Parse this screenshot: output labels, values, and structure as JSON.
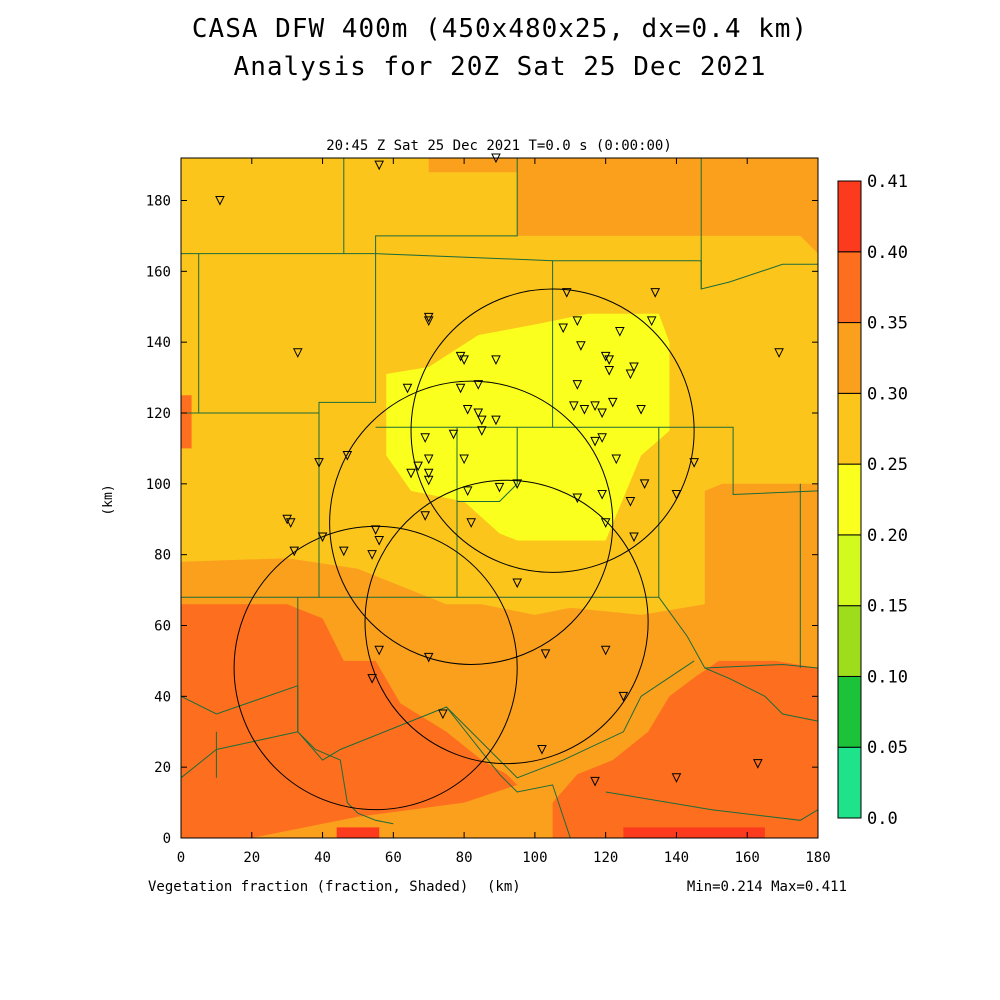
{
  "header": {
    "title_line1": "CASA DFW 400m (450x480x25, dx=0.4 km)",
    "title_line2": "Analysis for 20Z Sat 25 Dec 2021",
    "subtitle": "20:45 Z Sat 25 Dec 2021    T=0.0 s (0:00:00)"
  },
  "footer": {
    "variable_label": "Vegetation fraction (fraction, Shaded)",
    "x_unit_label": "(km)",
    "minmax": "Min=0.214 Max=0.411"
  },
  "colors": {
    "c0": "#1ee38a",
    "c1": "#1cc339",
    "c2": "#9edd1c",
    "c3": "#d2fa1e",
    "c4": "#faff1e",
    "c5": "#fcc51c",
    "c6": "#fba01c",
    "c7": "#fd6f1e",
    "c8": "#fc3a1e",
    "boundary": "#1c6b3a"
  },
  "chart_data": {
    "type": "heatmap",
    "title": "CASA DFW 400m (450x480x25, dx=0.4 km)",
    "subtitle": "Analysis for 20Z Sat 25 Dec 2021",
    "xlabel": "(km)",
    "ylabel": "(km)",
    "xlim": [
      0,
      180
    ],
    "ylim": [
      0,
      192
    ],
    "x_ticks": [
      0,
      20,
      40,
      60,
      80,
      100,
      120,
      140,
      160,
      180
    ],
    "y_ticks": [
      0,
      20,
      40,
      60,
      80,
      100,
      120,
      140,
      160,
      180
    ],
    "colorbar": {
      "levels": [
        0.0,
        0.05,
        0.1,
        0.15,
        0.2,
        0.25,
        0.3,
        0.35,
        0.4,
        0.41
      ],
      "labels": [
        "0.0",
        "0.05",
        "0.10",
        "0.15",
        "0.20",
        "0.25",
        "0.30",
        "0.35",
        "0.40",
        "0.41"
      ]
    },
    "min": 0.214,
    "max": 0.411,
    "regions": [
      {
        "level": 6,
        "polygon": [
          [
            0,
            192
          ],
          [
            180,
            192
          ],
          [
            180,
            0
          ],
          [
            0,
            0
          ]
        ]
      },
      {
        "level": 5,
        "polygon": [
          [
            0,
            192
          ],
          [
            70,
            192
          ],
          [
            70,
            188
          ],
          [
            95,
            188
          ],
          [
            95,
            170
          ],
          [
            175,
            170
          ],
          [
            180,
            165
          ],
          [
            180,
            100
          ],
          [
            153,
            100
          ],
          [
            148,
            98
          ],
          [
            148,
            66
          ],
          [
            130,
            63
          ],
          [
            110,
            65
          ],
          [
            100,
            63
          ],
          [
            85,
            66
          ],
          [
            75,
            66
          ],
          [
            60,
            72
          ],
          [
            50,
            76
          ],
          [
            30,
            79
          ],
          [
            0,
            78
          ]
        ]
      },
      {
        "level": 4,
        "polygon": [
          [
            58,
            131
          ],
          [
            58,
            108
          ],
          [
            65,
            98
          ],
          [
            80,
            95
          ],
          [
            90,
            86
          ],
          [
            95,
            84
          ],
          [
            120,
            84
          ],
          [
            125,
            96
          ],
          [
            130,
            108
          ],
          [
            138,
            115
          ],
          [
            138,
            140
          ],
          [
            135,
            148
          ],
          [
            115,
            148
          ],
          [
            100,
            145
          ],
          [
            84,
            142
          ],
          [
            70,
            133
          ]
        ]
      },
      {
        "level": 7,
        "polygon": [
          [
            0,
            66
          ],
          [
            30,
            66
          ],
          [
            40,
            62
          ],
          [
            46,
            50
          ],
          [
            55,
            50
          ],
          [
            62,
            38
          ],
          [
            75,
            30
          ],
          [
            85,
            22
          ],
          [
            92,
            18
          ],
          [
            95,
            15
          ],
          [
            80,
            10
          ],
          [
            50,
            6
          ],
          [
            20,
            0
          ],
          [
            0,
            0
          ],
          [
            0,
            60
          ]
        ]
      },
      {
        "level": 7,
        "polygon": [
          [
            105,
            0
          ],
          [
            180,
            0
          ],
          [
            180,
            48
          ],
          [
            168,
            50
          ],
          [
            152,
            50
          ],
          [
            146,
            46
          ],
          [
            138,
            40
          ],
          [
            132,
            30
          ],
          [
            122,
            22
          ],
          [
            112,
            18
          ],
          [
            105,
            10
          ]
        ]
      },
      {
        "level": 7,
        "polygon": [
          [
            0,
            125
          ],
          [
            3,
            125
          ],
          [
            3,
            110
          ],
          [
            0,
            110
          ]
        ]
      },
      {
        "level": 8,
        "polygon": [
          [
            44,
            0
          ],
          [
            56,
            0
          ],
          [
            56,
            3
          ],
          [
            44,
            3
          ]
        ]
      },
      {
        "level": 8,
        "polygon": [
          [
            125,
            0
          ],
          [
            165,
            0
          ],
          [
            165,
            3
          ],
          [
            125,
            3
          ]
        ]
      }
    ],
    "range_rings": [
      {
        "center": [
          105,
          115
        ],
        "radius": 40
      },
      {
        "center": [
          82,
          89
        ],
        "radius": 40
      },
      {
        "center": [
          92,
          61
        ],
        "radius": 40
      },
      {
        "center": [
          55,
          48
        ],
        "radius": 40
      }
    ],
    "stations": [
      [
        11,
        180
      ],
      [
        56,
        190
      ],
      [
        89,
        192
      ],
      [
        33,
        137
      ],
      [
        70,
        146
      ],
      [
        70,
        147
      ],
      [
        39,
        106
      ],
      [
        47,
        108
      ],
      [
        30,
        90
      ],
      [
        31,
        89
      ],
      [
        32,
        81
      ],
      [
        40,
        85
      ],
      [
        46,
        81
      ],
      [
        55,
        87
      ],
      [
        56,
        84
      ],
      [
        54,
        80
      ],
      [
        56,
        53
      ],
      [
        54,
        45
      ],
      [
        70,
        51
      ],
      [
        74,
        35
      ],
      [
        64,
        127
      ],
      [
        69,
        113
      ],
      [
        70,
        107
      ],
      [
        65,
        103
      ],
      [
        67,
        105
      ],
      [
        70,
        103
      ],
      [
        70,
        101
      ],
      [
        69,
        91
      ],
      [
        79,
        136
      ],
      [
        80,
        135
      ],
      [
        79,
        127
      ],
      [
        81,
        121
      ],
      [
        84,
        128
      ],
      [
        84,
        120
      ],
      [
        85,
        118
      ],
      [
        85,
        115
      ],
      [
        89,
        118
      ],
      [
        89,
        135
      ],
      [
        77,
        114
      ],
      [
        80,
        107
      ],
      [
        81,
        98
      ],
      [
        82,
        89
      ],
      [
        90,
        99
      ],
      [
        95,
        100
      ],
      [
        95,
        72
      ],
      [
        103,
        52
      ],
      [
        102,
        25
      ],
      [
        109,
        154
      ],
      [
        108,
        144
      ],
      [
        112,
        146
      ],
      [
        113,
        139
      ],
      [
        112,
        128
      ],
      [
        111,
        122
      ],
      [
        114,
        121
      ],
      [
        117,
        122
      ],
      [
        119,
        120
      ],
      [
        122,
        123
      ],
      [
        120,
        136
      ],
      [
        121,
        132
      ],
      [
        124,
        143
      ],
      [
        121,
        135
      ],
      [
        127,
        131
      ],
      [
        128,
        133
      ],
      [
        130,
        121
      ],
      [
        133,
        146
      ],
      [
        134,
        154
      ],
      [
        112,
        96
      ],
      [
        117,
        112
      ],
      [
        119,
        113
      ],
      [
        123,
        107
      ],
      [
        119,
        97
      ],
      [
        120,
        89
      ],
      [
        127,
        95
      ],
      [
        128,
        85
      ],
      [
        131,
        100
      ],
      [
        140,
        97
      ],
      [
        145,
        106
      ],
      [
        120,
        53
      ],
      [
        125,
        40
      ],
      [
        140,
        17
      ],
      [
        163,
        21
      ],
      [
        169,
        137
      ],
      [
        117,
        16
      ]
    ]
  }
}
